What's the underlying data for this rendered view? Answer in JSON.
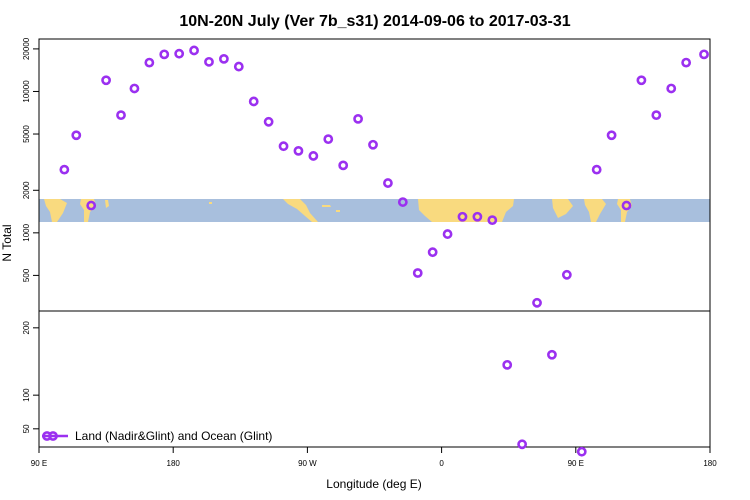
{
  "chart_data": {
    "type": "scatter",
    "title": "10N-20N July (Ver 7b_s31)   2014-09-06 to 2017-03-31",
    "xlabel": "Longitude (deg E)",
    "ylabel": "N Total",
    "x_ticks": [
      {
        "value": 90,
        "label": "90 E"
      },
      {
        "value": 180,
        "label": "180"
      },
      {
        "value": 270,
        "label": "90 W"
      },
      {
        "value": 360,
        "label": "0"
      },
      {
        "value": 450,
        "label": "90 E"
      },
      {
        "value": 540,
        "label": "180"
      }
    ],
    "xlim": [
      90,
      540
    ],
    "upper_panel": {
      "scale": "log",
      "ylim": [
        280,
        23500
      ],
      "y_ticks": [
        500,
        1000,
        2000,
        5000,
        10000,
        20000
      ],
      "y_tick_labels": [
        "500",
        "1000",
        "2000",
        "5000",
        "10000",
        "20000"
      ],
      "map_band": {
        "lat_range": "10N-20N",
        "ocean_color": "#a8bfdd",
        "land_color": "#f9da7f"
      }
    },
    "lower_panel": {
      "scale": "linear",
      "ylim": [
        23,
        225
      ],
      "y_ticks": [
        50,
        100,
        200
      ],
      "y_tick_labels": [
        "50",
        "100",
        "200"
      ]
    },
    "series": [
      {
        "name": "Land (Nadir&Glint) and Ocean (Glint)",
        "color": "#9b30f0",
        "x": [
          107,
          115,
          125,
          135,
          145,
          154,
          164,
          174,
          184,
          194,
          204,
          214,
          224,
          234,
          244,
          254,
          264,
          274,
          284,
          294,
          304,
          314,
          324,
          334,
          344,
          354,
          364,
          374,
          384,
          394,
          404,
          414,
          424,
          434,
          444,
          454,
          464,
          474,
          484,
          494,
          504,
          514,
          524,
          536
        ],
        "y": [
          2800,
          4900,
          1560,
          12000,
          6800,
          10500,
          16000,
          18300,
          18500,
          19500,
          16200,
          17000,
          15000,
          8500,
          6100,
          4100,
          3800,
          3500,
          4600,
          3000,
          6400,
          4200,
          2250,
          1650,
          520,
          730,
          980,
          1300,
          1300,
          1230,
          145,
          27,
          320,
          160,
          505,
          16,
          2800,
          4900,
          1560,
          12000,
          6800,
          10500,
          16000,
          18300
        ]
      }
    ],
    "legend": {
      "position": "bottom-left",
      "label": "Land (Nadir&Glint) and Ocean (Glint)"
    }
  }
}
